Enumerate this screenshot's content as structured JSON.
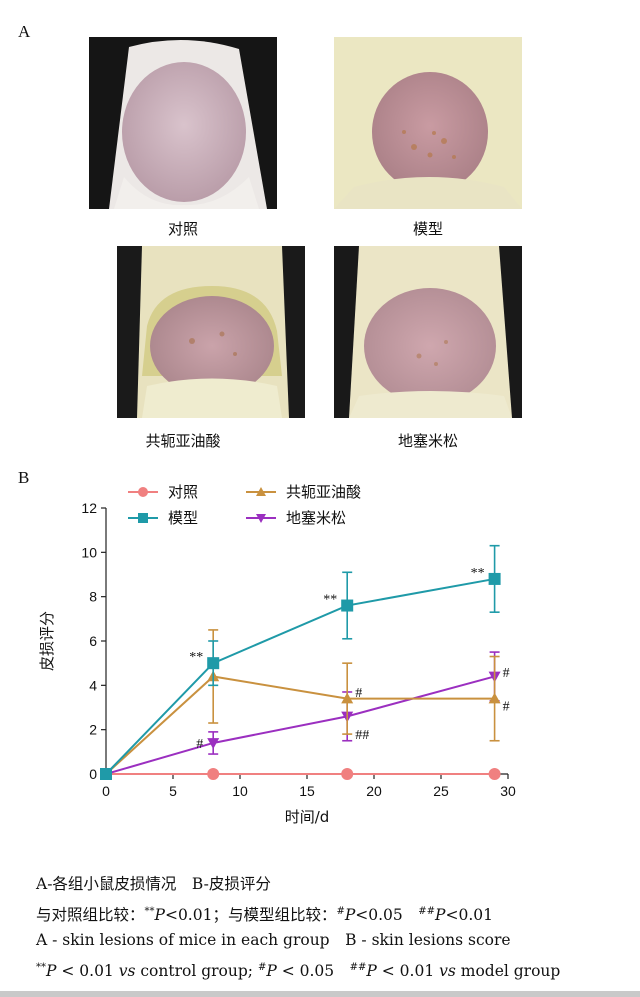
{
  "panel_a": {
    "letter": "A",
    "photos": [
      {
        "label": "对照"
      },
      {
        "label": "模型"
      },
      {
        "label": "共轭亚油酸"
      },
      {
        "label": "地塞米松"
      }
    ]
  },
  "panel_b": {
    "letter": "B"
  },
  "chart_data": {
    "type": "line",
    "xlabel": "时间/d",
    "ylabel": "皮损评分",
    "xlim": [
      0,
      30
    ],
    "ylim": [
      0,
      12
    ],
    "xticks": [
      "0",
      "5",
      "10",
      "15",
      "20",
      "25",
      "30"
    ],
    "yticks": [
      "0",
      "2",
      "4",
      "6",
      "8",
      "10",
      "12"
    ],
    "legend": [
      "对照",
      "模型",
      "共轭亚油酸",
      "地塞米松"
    ],
    "legend_position": "top",
    "grid": false,
    "series": [
      {
        "name": "对照",
        "color": "#f08080",
        "marker": "circle",
        "x": [
          0,
          8,
          18,
          29
        ],
        "y": [
          0,
          0,
          0,
          0
        ],
        "err": [
          0,
          0,
          0,
          0
        ]
      },
      {
        "name": "模型",
        "color": "#1f9aa8",
        "marker": "square",
        "x": [
          0,
          8,
          18,
          29
        ],
        "y": [
          0,
          5.0,
          7.6,
          8.8
        ],
        "err": [
          0,
          1.0,
          1.5,
          1.5
        ]
      },
      {
        "name": "共轭亚油酸",
        "color": "#c9913f",
        "marker": "triangle-up",
        "x": [
          0,
          8,
          18,
          29
        ],
        "y": [
          0,
          4.4,
          3.4,
          3.4
        ],
        "err": [
          0,
          2.1,
          1.6,
          1.9
        ]
      },
      {
        "name": "地塞米松",
        "color": "#9b2fc0",
        "marker": "triangle-down",
        "x": [
          0,
          8,
          18,
          29
        ],
        "y": [
          0,
          1.4,
          2.6,
          4.4
        ],
        "err": [
          0,
          0.5,
          1.1,
          1.1
        ]
      }
    ],
    "annotations": [
      {
        "text": "**",
        "x": 8,
        "y": 5.0,
        "side": "left"
      },
      {
        "text": "**",
        "x": 18,
        "y": 7.6,
        "side": "left"
      },
      {
        "text": "**",
        "x": 29,
        "y": 8.8,
        "side": "left"
      },
      {
        "text": "#",
        "x": 8,
        "y": 1.4,
        "side": "left"
      },
      {
        "text": "#",
        "x": 18,
        "y": 3.7,
        "side": "right"
      },
      {
        "text": "##",
        "x": 18,
        "y": 1.8,
        "side": "right"
      },
      {
        "text": "#",
        "x": 29,
        "y": 4.6,
        "side": "right"
      },
      {
        "text": "#",
        "x": 29,
        "y": 3.1,
        "side": "right"
      }
    ]
  },
  "caption": {
    "line1": "A-各组小鼠皮损情况　B-皮损评分",
    "line2_a": "与对照组比较：",
    "line2_b": "**",
    "line2_c": "P",
    "line2_d": "<0.01；与模型组比较：",
    "line2_e": "#",
    "line2_f": "P",
    "line2_g": "<0.05　",
    "line2_h": "##",
    "line2_i": "P",
    "line2_j": "<0.01",
    "line3": "A - skin lesions of mice in each group　B - skin lesions score",
    "line4_a": "**",
    "line4_b": "P",
    "line4_c": " < 0.01 ",
    "line4_d": "vs",
    "line4_e": " control group; ",
    "line4_f": "#",
    "line4_g": "P",
    "line4_h": " < 0.05　",
    "line4_i": "##",
    "line4_j": "P",
    "line4_k": " < 0.01 ",
    "line4_l": "vs",
    "line4_m": " model group"
  }
}
